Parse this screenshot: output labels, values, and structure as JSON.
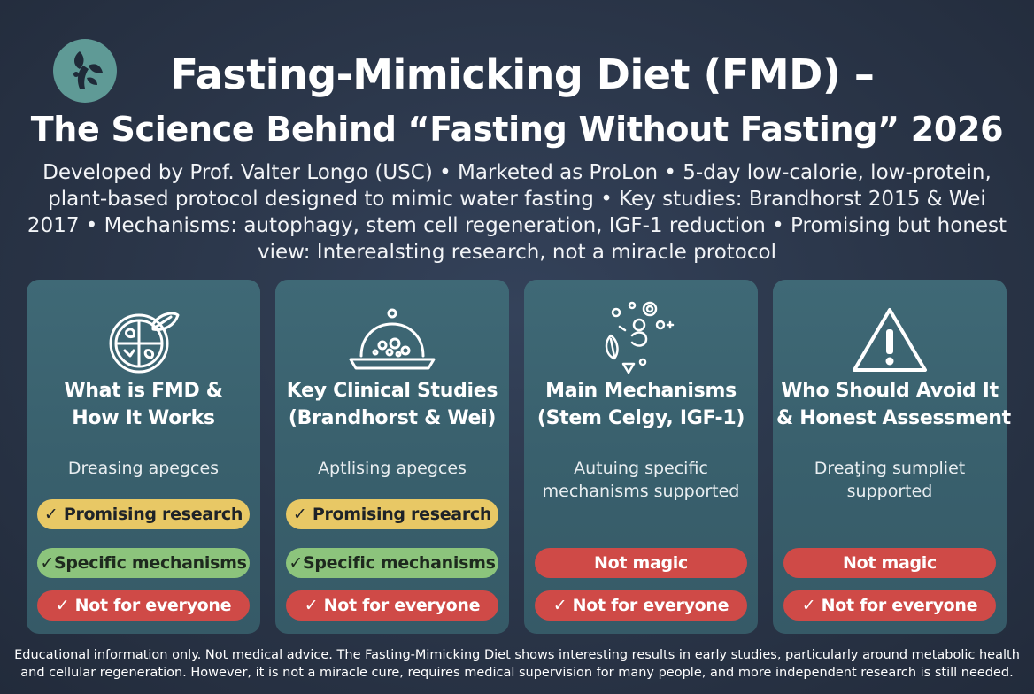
{
  "header": {
    "title_line1": "Fasting-Mimicking Diet (FMD) –",
    "title_line2": "The Science Behind “Fasting Without Fasting” 2026",
    "subtitle": "Developed by Prof. Valter Longo (USC) • Marketed as ProLon • 5-day low-calorie, low-protein, plant-based protocol designed to mimic water fasting • Key studies: Brandhorst 2015 & Wei 2017 • Mechanisms: autophagy, stem cell regeneration, IGF-1 reduction • Promising but honest view: Interealsting research, not a miracle protocol",
    "logo_icon": "leaf-figure-logo-icon"
  },
  "colors": {
    "background": "#2a3548",
    "card": "#3b6370",
    "yellow_badge": "#e8c865",
    "green_badge": "#8cc47c",
    "red_badge": "#cf4a47",
    "logo": "#5f9a96"
  },
  "cards": [
    {
      "icon": "plate-leaf-icon",
      "title_line1": "What is FMD &",
      "title_line2": "How It Works",
      "description": "Dreasing apegces",
      "badges": [
        {
          "label": "✓ Promising research",
          "color": "yellow"
        },
        {
          "label": "✓Specific mechanisms",
          "color": "green"
        },
        {
          "label": "✓ Not for everyone",
          "color": "red"
        }
      ]
    },
    {
      "icon": "food-dome-icon",
      "title_line1": "Key Clinical Studies",
      "title_line2": "(Brandhorst & Wei)",
      "description": "Aptlising apegces",
      "badges": [
        {
          "label": "✓ Promising research",
          "color": "yellow"
        },
        {
          "label": "✓Specific mechanisms",
          "color": "green"
        },
        {
          "label": "✓ Not for everyone",
          "color": "red"
        }
      ]
    },
    {
      "icon": "cells-molecules-icon",
      "title_line1": "Main Mechanisms",
      "title_line2": "(Stem Celgy, IGF-1)",
      "description": "Autuing specific mechanisms supported",
      "badges": [
        {
          "label": "Not magic",
          "color": "red"
        },
        {
          "label": "✓ Not for everyone",
          "color": "red"
        }
      ]
    },
    {
      "icon": "warning-triangle-icon",
      "title_line1": "Who Should Avoid It",
      "title_line2": "& Honest Assessment",
      "description": "Dreaţing sumpliet supported",
      "badges": [
        {
          "label": "Not magic",
          "color": "red"
        },
        {
          "label": "✓ Not for everyone",
          "color": "red"
        }
      ]
    }
  ],
  "footer": {
    "disclaimer": "Educational information only. Not medical advice. The Fasting-Mimicking Diet shows interesting results in early studies, particularly around metabolic health and cellular regeneration. However, it is not a miracle cure, requires medical supervision for many people, and more independent research is still needed."
  }
}
